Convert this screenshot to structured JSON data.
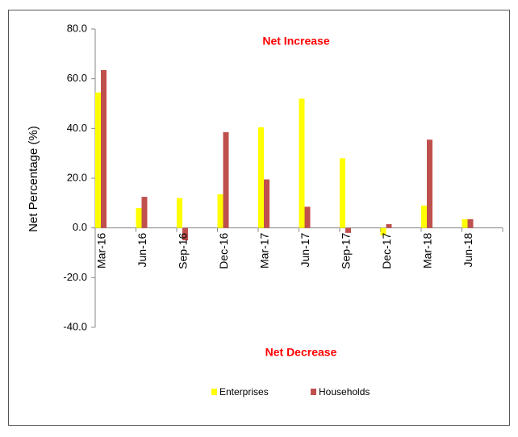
{
  "chart_data": {
    "type": "bar",
    "annotations": [
      "Net Increase",
      "Net Decrease"
    ],
    "y_label": "Net Percentage (%)",
    "categories": [
      "Mar-16",
      "Jun-16",
      "Sep-16",
      "Dec-16",
      "Mar-17",
      "Jun-17",
      "Sep-17",
      "Dec-17",
      "Mar-18",
      "Jun-18"
    ],
    "series": [
      {
        "name": "Enterprises",
        "color": "#ffff00",
        "values": [
          54.5,
          8,
          12,
          13.5,
          40.5,
          52,
          28,
          -3,
          9,
          3.5
        ]
      },
      {
        "name": "Households",
        "color": "#c0504d",
        "values": [
          63.5,
          12.5,
          -5,
          38.5,
          19.5,
          8.5,
          -2,
          1.5,
          35.5,
          3.5
        ]
      }
    ],
    "ylim": [
      -40,
      80
    ],
    "yticks": [
      {
        "value": -40,
        "label": "-40.0"
      },
      {
        "value": -20,
        "label": "-20.0"
      },
      {
        "value": 0,
        "label": "0.0"
      },
      {
        "value": 20,
        "label": "20.0"
      },
      {
        "value": 40,
        "label": "40.0"
      },
      {
        "value": 60,
        "label": "60.0"
      },
      {
        "value": 80,
        "label": "80.0"
      }
    ],
    "legend": "bottom"
  }
}
